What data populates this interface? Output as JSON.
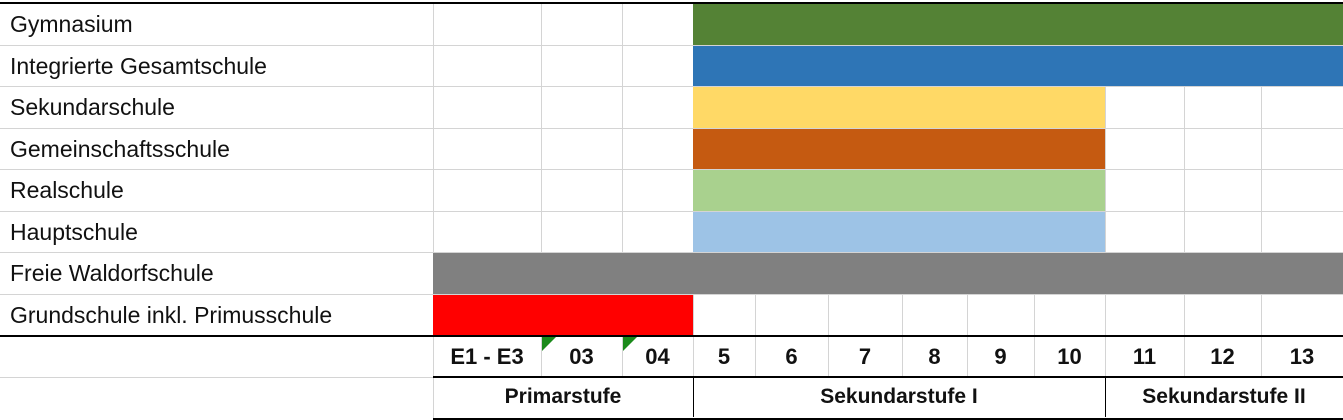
{
  "chart_data": {
    "type": "table",
    "title": "",
    "columns": [
      "E1 - E3",
      "03",
      "04",
      "5",
      "6",
      "7",
      "8",
      "9",
      "10",
      "11",
      "12",
      "13"
    ],
    "stages": [
      {
        "label": "Primarstufe",
        "from": 0,
        "to": 2
      },
      {
        "label": "Sekundarstufe I",
        "from": 3,
        "to": 8
      },
      {
        "label": "Sekundarstufe II",
        "from": 9,
        "to": 11
      }
    ],
    "rows": [
      {
        "label": "Gymnasium",
        "from": 3,
        "to": 11,
        "color": "#548235"
      },
      {
        "label": "Integrierte Gesamtschule",
        "from": 3,
        "to": 11,
        "color": "#2e75b6"
      },
      {
        "label": "Sekundarschule",
        "from": 3,
        "to": 8,
        "color": "#ffd966"
      },
      {
        "label": "Gemeinschaftsschule",
        "from": 3,
        "to": 8,
        "color": "#c55a11"
      },
      {
        "label": "Realschule",
        "from": 3,
        "to": 8,
        "color": "#a9d18e"
      },
      {
        "label": "Hauptschule",
        "from": 3,
        "to": 8,
        "color": "#9dc3e6"
      },
      {
        "label": "Freie Waldorfschule",
        "from": 0,
        "to": 11,
        "color": "#808080"
      },
      {
        "label": "Grundschule inkl. Primusschule",
        "from": 0,
        "to": 2,
        "color": "#ff0000"
      }
    ]
  }
}
